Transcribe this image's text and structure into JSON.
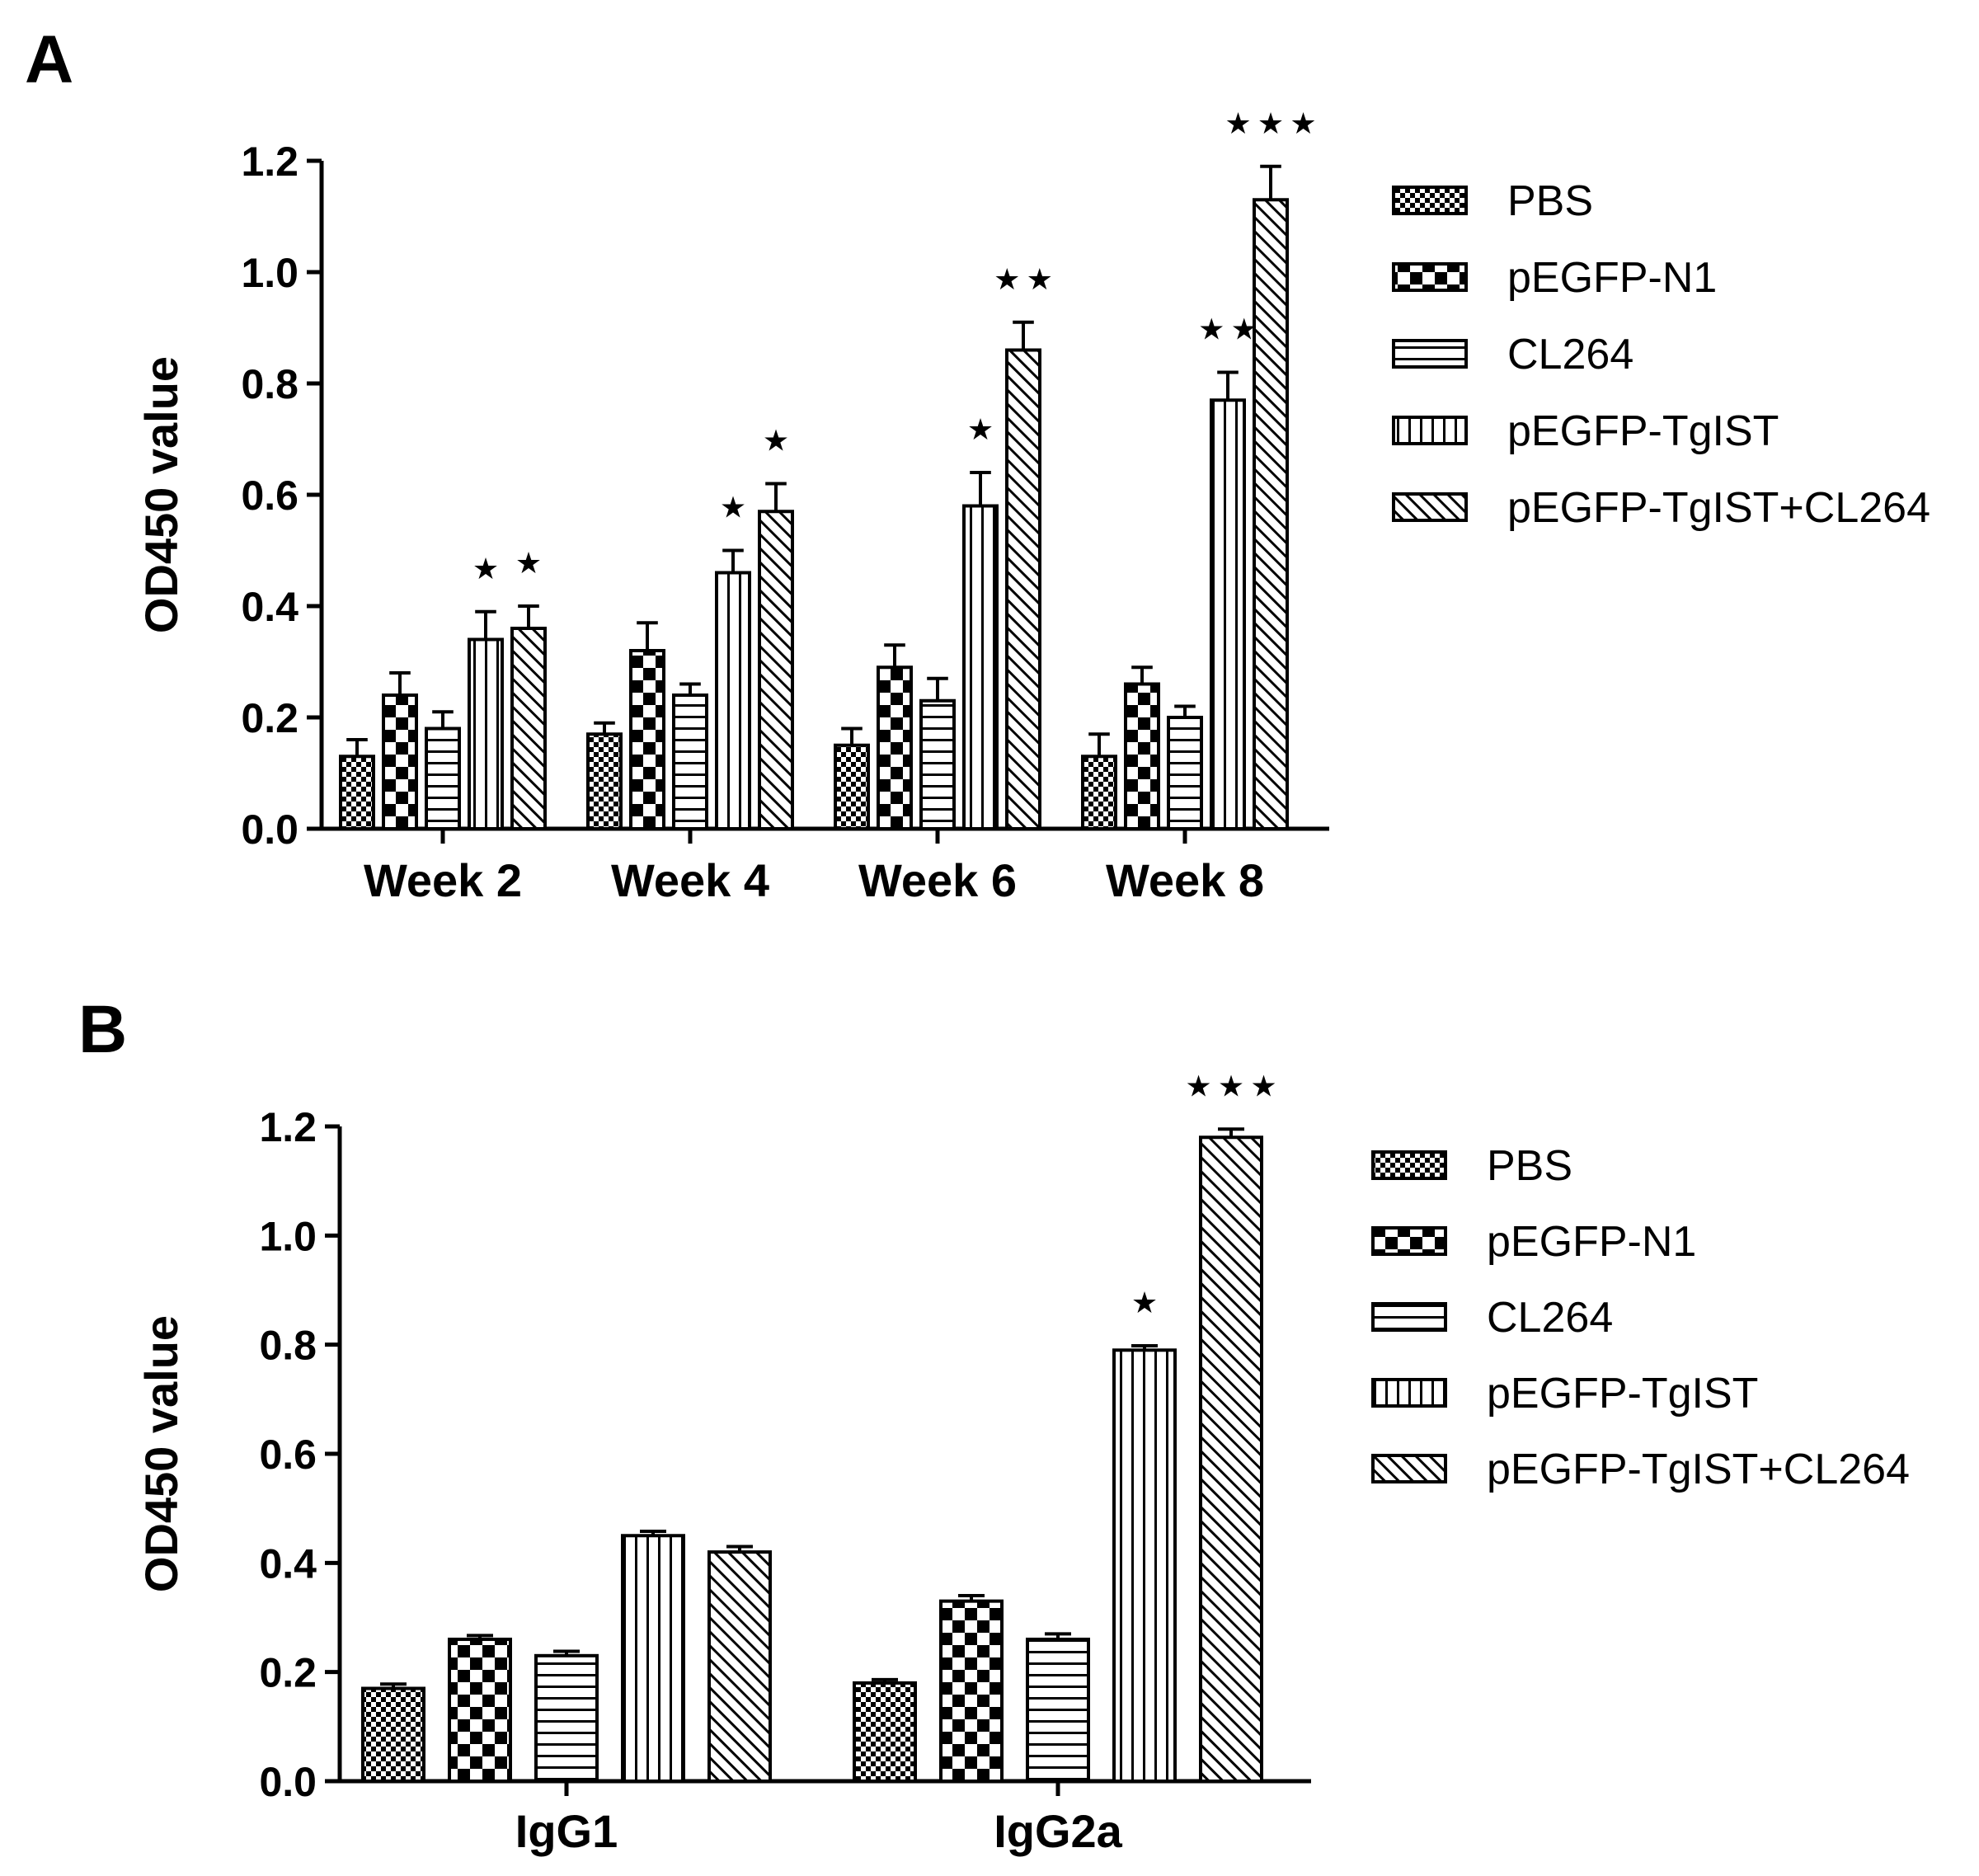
{
  "chart_data": [
    {
      "type": "bar",
      "panel_label": "A",
      "title": "",
      "xlabel": "",
      "ylabel": "OD450 value",
      "ylim": [
        0,
        1.2
      ],
      "yticks": [
        "0.0",
        "0.2",
        "0.4",
        "0.6",
        "0.8",
        "1.0",
        "1.2"
      ],
      "categories": [
        "Week 2",
        "Week 4",
        "Week 6",
        "Week 8"
      ],
      "series": [
        {
          "name": "PBS",
          "pattern": "checker-fine",
          "values": [
            0.13,
            0.17,
            0.15,
            0.13
          ],
          "errors": [
            0.03,
            0.02,
            0.03,
            0.04
          ],
          "stars": [
            "",
            "",
            "",
            ""
          ]
        },
        {
          "name": "pEGFP-N1",
          "pattern": "checker-coarse",
          "values": [
            0.24,
            0.32,
            0.29,
            0.26
          ],
          "errors": [
            0.04,
            0.05,
            0.04,
            0.03
          ],
          "stars": [
            "",
            "",
            "",
            ""
          ]
        },
        {
          "name": "CL264",
          "pattern": "horizontal",
          "values": [
            0.18,
            0.24,
            0.23,
            0.2
          ],
          "errors": [
            0.03,
            0.02,
            0.04,
            0.02
          ],
          "stars": [
            "",
            "",
            "",
            ""
          ]
        },
        {
          "name": "pEGFP-TgIST",
          "pattern": "vertical",
          "values": [
            0.34,
            0.46,
            0.58,
            0.77
          ],
          "errors": [
            0.05,
            0.04,
            0.06,
            0.05
          ],
          "stars": [
            "★",
            "★",
            "★",
            "★★"
          ]
        },
        {
          "name": "pEGFP-TgIST+CL264",
          "pattern": "diagonal",
          "values": [
            0.36,
            0.57,
            0.86,
            1.13
          ],
          "errors": [
            0.04,
            0.05,
            0.05,
            0.06
          ],
          "stars": [
            "★",
            "★",
            "★★",
            "★★★"
          ]
        }
      ],
      "legend_position": "right"
    },
    {
      "type": "bar",
      "panel_label": "B",
      "title": "",
      "xlabel": "",
      "ylabel": "OD450 value",
      "ylim": [
        0,
        1.2
      ],
      "yticks": [
        "0.0",
        "0.2",
        "0.4",
        "0.6",
        "0.8",
        "1.0",
        "1.2"
      ],
      "categories": [
        "IgG1",
        "IgG2a"
      ],
      "series": [
        {
          "name": "PBS",
          "pattern": "checker-fine",
          "values": [
            0.17,
            0.18
          ],
          "errors": [
            0.008,
            0.006
          ],
          "stars": [
            "",
            ""
          ]
        },
        {
          "name": "pEGFP-N1",
          "pattern": "checker-coarse",
          "values": [
            0.26,
            0.33
          ],
          "errors": [
            0.007,
            0.01
          ],
          "stars": [
            "",
            ""
          ]
        },
        {
          "name": "CL264",
          "pattern": "horizontal",
          "values": [
            0.23,
            0.26
          ],
          "errors": [
            0.008,
            0.01
          ],
          "stars": [
            "",
            ""
          ]
        },
        {
          "name": "pEGFP-TgIST",
          "pattern": "vertical",
          "values": [
            0.45,
            0.79
          ],
          "errors": [
            0.008,
            0.008
          ],
          "stars": [
            "",
            "★"
          ]
        },
        {
          "name": "pEGFP-TgIST+CL264",
          "pattern": "diagonal",
          "values": [
            0.42,
            1.18
          ],
          "errors": [
            0.01,
            0.015
          ],
          "stars": [
            "",
            "★★★"
          ]
        }
      ],
      "legend_position": "right"
    }
  ]
}
